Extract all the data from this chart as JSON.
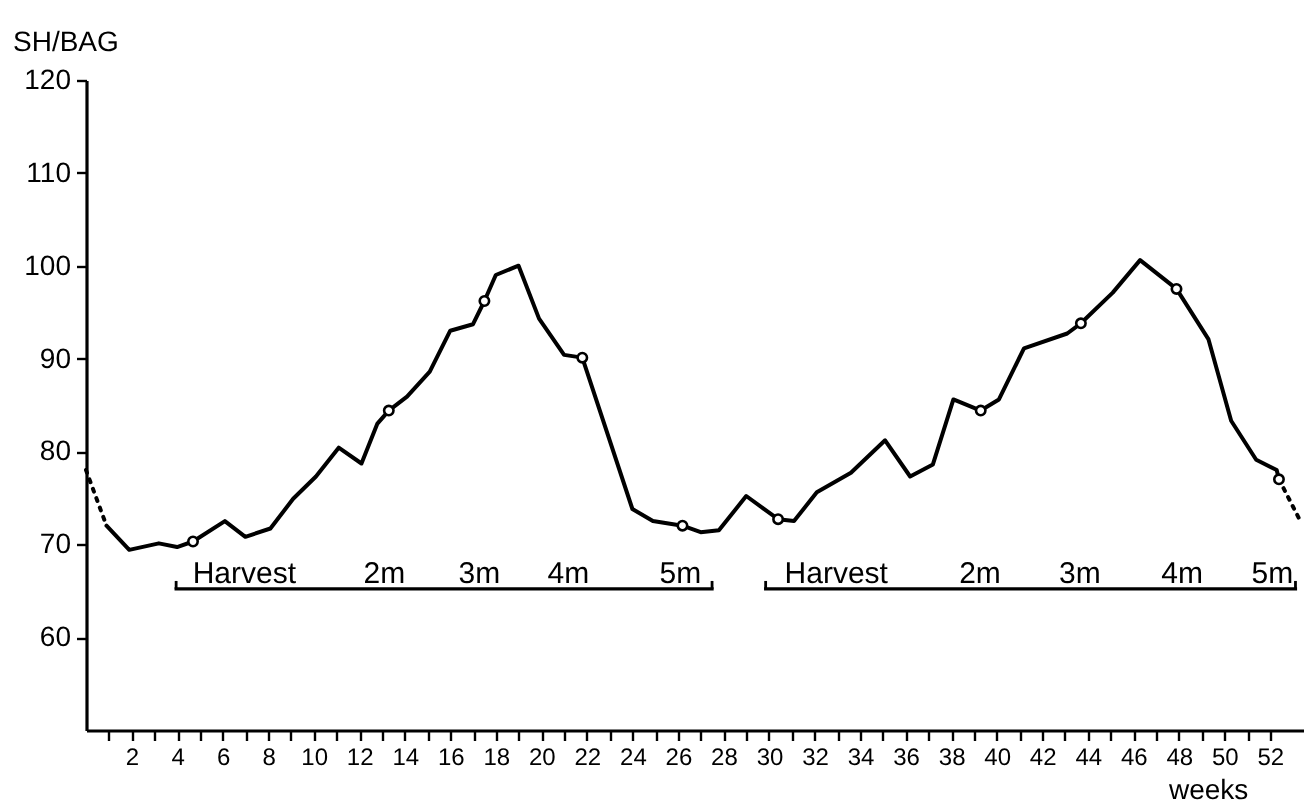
{
  "chart_data": {
    "type": "line",
    "ylabel": "SH/BAG",
    "xlabel": "weeks",
    "xlim": [
      0,
      53.5
    ],
    "ylim": [
      50,
      120
    ],
    "xticks": [
      {
        "value": 1,
        "label": null
      },
      2,
      {
        "value": 3,
        "label": null
      },
      4,
      {
        "value": 5,
        "label": null
      },
      6,
      {
        "value": 7,
        "label": null
      },
      8,
      {
        "value": 9,
        "label": null
      },
      10,
      {
        "value": 11,
        "label": null
      },
      12,
      {
        "value": 13,
        "label": null
      },
      14,
      {
        "value": 15,
        "label": null
      },
      16,
      {
        "value": 17,
        "label": null
      },
      18,
      {
        "value": 19,
        "label": null
      },
      20,
      {
        "value": 21,
        "label": null
      },
      22,
      {
        "value": 23,
        "label": null
      },
      24,
      {
        "value": 25,
        "label": null
      },
      26,
      {
        "value": 27,
        "label": null
      },
      28,
      {
        "value": 29,
        "label": null
      },
      30,
      {
        "value": 31,
        "label": null
      },
      32,
      {
        "value": 33,
        "label": null
      },
      34,
      {
        "value": 35,
        "label": null
      },
      36,
      {
        "value": 37,
        "label": null
      },
      38,
      {
        "value": 39,
        "label": null
      },
      40,
      {
        "value": 41,
        "label": null
      },
      42,
      {
        "value": 43,
        "label": null
      },
      44,
      {
        "value": 45,
        "label": null
      },
      46,
      {
        "value": 47,
        "label": null
      },
      48,
      {
        "value": 49,
        "label": null
      },
      50,
      {
        "value": 51,
        "label": null
      },
      52
    ],
    "yticks": [
      60,
      70,
      80,
      90,
      100,
      110,
      120
    ],
    "series": [
      {
        "type": "line",
        "color": "#000000",
        "line_style": "solid",
        "x": [
          0.9,
          1.9,
          3.2,
          4.0,
          4.7,
          6.1,
          7.0,
          8.1,
          9.1,
          10.1,
          11.1,
          12.1,
          12.8,
          13.3,
          14.1,
          15.1,
          16.0,
          17.0,
          17.5,
          18.0,
          19.0,
          19.9,
          21.0,
          21.8,
          24.0,
          24.9,
          26.2,
          27.0,
          27.8,
          29.0,
          30.4,
          31.1,
          32.1,
          33.6,
          35.1,
          36.2,
          37.2,
          38.1,
          39.3,
          40.1,
          41.2,
          43.1,
          43.7,
          45.1,
          46.3,
          47.9,
          49.3,
          50.3,
          51.4,
          52.3,
          52.4
        ],
        "values": [
          72.0,
          69.4,
          70.1,
          69.7,
          70.3,
          72.5,
          70.8,
          71.7,
          74.9,
          77.3,
          80.4,
          78.7,
          83.0,
          84.4,
          85.9,
          88.6,
          93.0,
          93.7,
          96.2,
          99.0,
          100.0,
          94.3,
          90.4,
          90.1,
          73.8,
          72.5,
          72.0,
          71.3,
          71.5,
          75.2,
          72.7,
          72.5,
          75.6,
          77.7,
          81.2,
          77.3,
          78.6,
          85.6,
          84.4,
          85.6,
          91.1,
          92.7,
          93.8,
          97.1,
          100.6,
          97.5,
          92.1,
          83.3,
          79.1,
          78.0,
          77.0
        ]
      },
      {
        "type": "line",
        "color": "#000000",
        "line_style": "dotted",
        "x": [
          0,
          0.9
        ],
        "values": [
          78.0,
          72.0
        ]
      },
      {
        "type": "line",
        "color": "#000000",
        "line_style": "dotted",
        "x": [
          52.4,
          53.3
        ],
        "values": [
          77.0,
          72.7
        ]
      },
      {
        "type": "scatter",
        "color": "#000000",
        "marker": "circle",
        "x": [
          4.7,
          13.3,
          17.5,
          21.8,
          26.2,
          30.4,
          39.3,
          43.7,
          47.9,
          52.4
        ],
        "values": [
          70.3,
          84.4,
          96.2,
          90.1,
          72.0,
          72.7,
          84.4,
          93.8,
          97.5,
          77.0
        ]
      }
    ],
    "annotations": [
      "Harvest",
      "2m",
      "3m",
      "4m",
      "5m",
      "Harvest",
      "2m",
      "3m",
      "4m",
      "5m"
    ]
  }
}
